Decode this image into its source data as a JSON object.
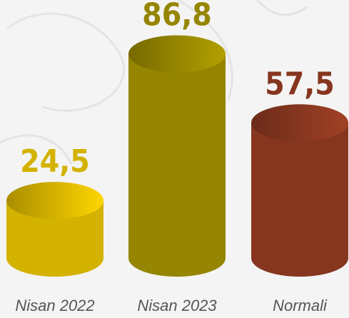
{
  "chart_data": {
    "type": "bar",
    "categories": [
      "Nisan 2022",
      "Nisan 2023",
      "Normali"
    ],
    "values": [
      24.5,
      86.8,
      57.5
    ],
    "value_labels": [
      "24,5",
      "86,8",
      "57,5"
    ],
    "colors": [
      "#d4b200",
      "#958500",
      "#86361f"
    ]
  }
}
